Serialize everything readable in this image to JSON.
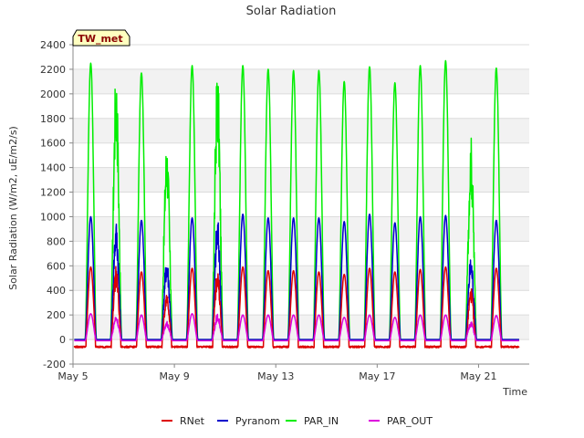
{
  "chart_data": {
    "type": "line",
    "title": "Solar Radiation",
    "xlabel": "Time",
    "ylabel": "Solar Radiation (W/m2, uE/m2/s)",
    "badge": "TW_met",
    "ylim": [
      -200,
      2400
    ],
    "yticks": [
      -200,
      0,
      200,
      400,
      600,
      800,
      1000,
      1200,
      1400,
      1600,
      1800,
      2000,
      2200,
      2400
    ],
    "xlim": [
      5.0,
      23.0
    ],
    "xticks": [
      {
        "value": 5,
        "label": "May 5"
      },
      {
        "value": 9,
        "label": "May 9"
      },
      {
        "value": 13,
        "label": "May 13"
      },
      {
        "value": 17,
        "label": "May 17"
      },
      {
        "value": 21,
        "label": "May 21"
      }
    ],
    "days": [
      5.7,
      6.7,
      7.7,
      8.7,
      9.7,
      10.7,
      11.7,
      12.7,
      13.7,
      14.7,
      15.7,
      16.7,
      17.7,
      18.7,
      19.7,
      20.7,
      21.7
    ],
    "series": [
      {
        "name": "RNet",
        "color": "#dd0000",
        "peaks": [
          590,
          600,
          550,
          400,
          580,
          580,
          590,
          560,
          560,
          550,
          530,
          580,
          550,
          570,
          590,
          420,
          580
        ],
        "night": -60
      },
      {
        "name": "Pyranom",
        "color": "#0000cc",
        "peaks": [
          1000,
          990,
          970,
          680,
          990,
          1000,
          1020,
          990,
          990,
          990,
          960,
          1020,
          950,
          1000,
          1010,
          690,
          970
        ],
        "night": 0
      },
      {
        "name": "PAR_IN",
        "color": "#00ee00",
        "peaks": [
          2250,
          2220,
          2170,
          1650,
          2230,
          2240,
          2230,
          2200,
          2190,
          2190,
          2100,
          2220,
          2090,
          2230,
          2270,
          1670,
          2210
        ],
        "night": 0
      },
      {
        "name": "PAR_OUT",
        "color": "#dd00dd",
        "peaks": [
          210,
          200,
          200,
          150,
          210,
          210,
          200,
          200,
          200,
          200,
          180,
          200,
          180,
          200,
          200,
          150,
          195
        ],
        "night": -10
      }
    ],
    "legend_position": "bottom-center",
    "grid": "horizontal bands"
  }
}
